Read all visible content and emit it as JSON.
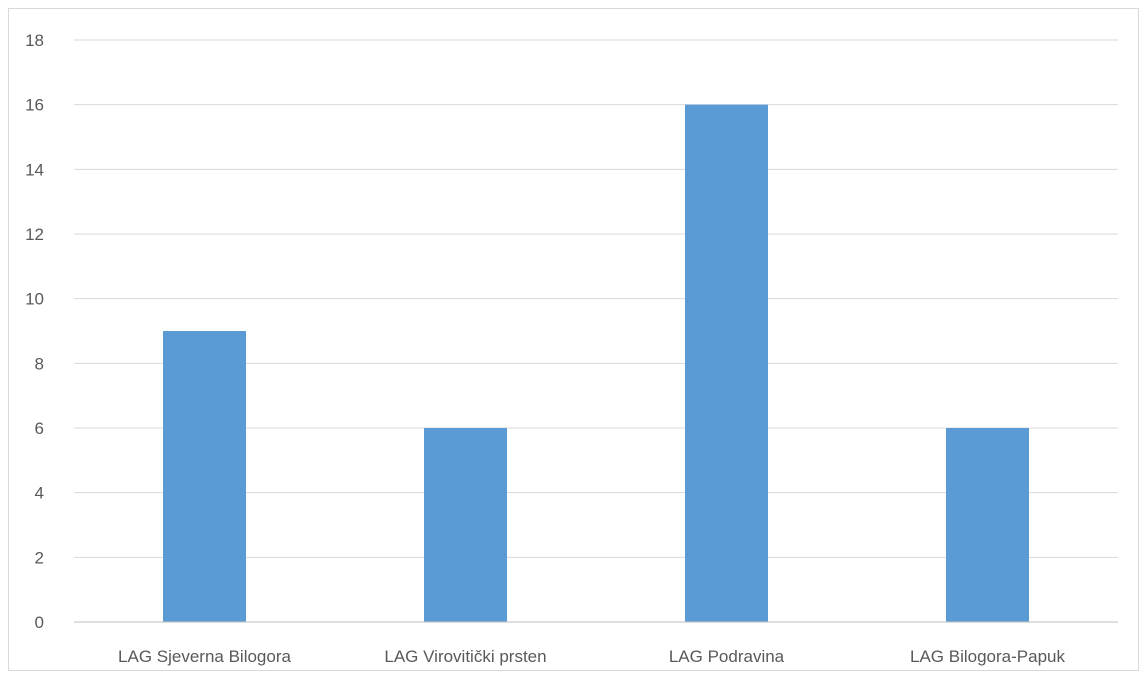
{
  "chart_data": {
    "type": "bar",
    "categories": [
      "LAG Sjeverna Bilogora",
      "LAG Virovitički prsten",
      "LAG Podravina",
      "LAG Bilogora-Papuk"
    ],
    "series": [
      {
        "values": [
          9,
          6,
          16,
          6
        ]
      }
    ],
    "title": "",
    "xlabel": "",
    "ylabel": "",
    "ylim": [
      0,
      18
    ],
    "yticks": [
      0,
      2,
      4,
      6,
      8,
      10,
      12,
      14,
      16,
      18
    ],
    "grid": true,
    "legend": "none",
    "colors": {
      "bar": "#5b9bd5",
      "grid": "#d9d9d9",
      "axis": "#bfbfbf",
      "label": "#595959"
    }
  }
}
